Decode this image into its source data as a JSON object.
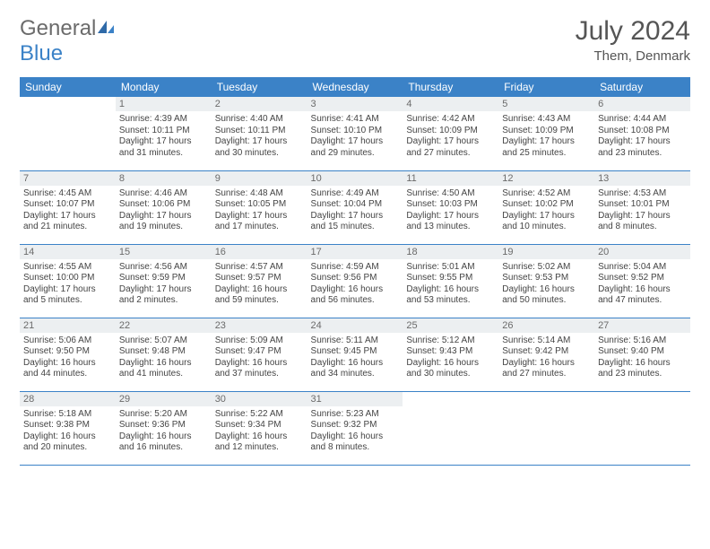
{
  "logo": {
    "general": "General",
    "blue": "Blue"
  },
  "title": "July 2024",
  "location": "Them, Denmark",
  "weekdays": [
    "Sunday",
    "Monday",
    "Tuesday",
    "Wednesday",
    "Thursday",
    "Friday",
    "Saturday"
  ],
  "colors": {
    "accent": "#3b82c7",
    "header_bg": "#3b82c7",
    "header_text": "#ffffff",
    "daynum_bg": "#eceff1",
    "text": "#444444",
    "border": "#3b82c7"
  },
  "weeks": [
    [
      null,
      {
        "n": "1",
        "sunrise": "4:39 AM",
        "sunset": "10:11 PM",
        "dl_h": "17",
        "dl_m": "31"
      },
      {
        "n": "2",
        "sunrise": "4:40 AM",
        "sunset": "10:11 PM",
        "dl_h": "17",
        "dl_m": "30"
      },
      {
        "n": "3",
        "sunrise": "4:41 AM",
        "sunset": "10:10 PM",
        "dl_h": "17",
        "dl_m": "29"
      },
      {
        "n": "4",
        "sunrise": "4:42 AM",
        "sunset": "10:09 PM",
        "dl_h": "17",
        "dl_m": "27"
      },
      {
        "n": "5",
        "sunrise": "4:43 AM",
        "sunset": "10:09 PM",
        "dl_h": "17",
        "dl_m": "25"
      },
      {
        "n": "6",
        "sunrise": "4:44 AM",
        "sunset": "10:08 PM",
        "dl_h": "17",
        "dl_m": "23"
      }
    ],
    [
      {
        "n": "7",
        "sunrise": "4:45 AM",
        "sunset": "10:07 PM",
        "dl_h": "17",
        "dl_m": "21"
      },
      {
        "n": "8",
        "sunrise": "4:46 AM",
        "sunset": "10:06 PM",
        "dl_h": "17",
        "dl_m": "19"
      },
      {
        "n": "9",
        "sunrise": "4:48 AM",
        "sunset": "10:05 PM",
        "dl_h": "17",
        "dl_m": "17"
      },
      {
        "n": "10",
        "sunrise": "4:49 AM",
        "sunset": "10:04 PM",
        "dl_h": "17",
        "dl_m": "15"
      },
      {
        "n": "11",
        "sunrise": "4:50 AM",
        "sunset": "10:03 PM",
        "dl_h": "17",
        "dl_m": "13"
      },
      {
        "n": "12",
        "sunrise": "4:52 AM",
        "sunset": "10:02 PM",
        "dl_h": "17",
        "dl_m": "10"
      },
      {
        "n": "13",
        "sunrise": "4:53 AM",
        "sunset": "10:01 PM",
        "dl_h": "17",
        "dl_m": "8"
      }
    ],
    [
      {
        "n": "14",
        "sunrise": "4:55 AM",
        "sunset": "10:00 PM",
        "dl_h": "17",
        "dl_m": "5"
      },
      {
        "n": "15",
        "sunrise": "4:56 AM",
        "sunset": "9:59 PM",
        "dl_h": "17",
        "dl_m": "2"
      },
      {
        "n": "16",
        "sunrise": "4:57 AM",
        "sunset": "9:57 PM",
        "dl_h": "16",
        "dl_m": "59"
      },
      {
        "n": "17",
        "sunrise": "4:59 AM",
        "sunset": "9:56 PM",
        "dl_h": "16",
        "dl_m": "56"
      },
      {
        "n": "18",
        "sunrise": "5:01 AM",
        "sunset": "9:55 PM",
        "dl_h": "16",
        "dl_m": "53"
      },
      {
        "n": "19",
        "sunrise": "5:02 AM",
        "sunset": "9:53 PM",
        "dl_h": "16",
        "dl_m": "50"
      },
      {
        "n": "20",
        "sunrise": "5:04 AM",
        "sunset": "9:52 PM",
        "dl_h": "16",
        "dl_m": "47"
      }
    ],
    [
      {
        "n": "21",
        "sunrise": "5:06 AM",
        "sunset": "9:50 PM",
        "dl_h": "16",
        "dl_m": "44"
      },
      {
        "n": "22",
        "sunrise": "5:07 AM",
        "sunset": "9:48 PM",
        "dl_h": "16",
        "dl_m": "41"
      },
      {
        "n": "23",
        "sunrise": "5:09 AM",
        "sunset": "9:47 PM",
        "dl_h": "16",
        "dl_m": "37"
      },
      {
        "n": "24",
        "sunrise": "5:11 AM",
        "sunset": "9:45 PM",
        "dl_h": "16",
        "dl_m": "34"
      },
      {
        "n": "25",
        "sunrise": "5:12 AM",
        "sunset": "9:43 PM",
        "dl_h": "16",
        "dl_m": "30"
      },
      {
        "n": "26",
        "sunrise": "5:14 AM",
        "sunset": "9:42 PM",
        "dl_h": "16",
        "dl_m": "27"
      },
      {
        "n": "27",
        "sunrise": "5:16 AM",
        "sunset": "9:40 PM",
        "dl_h": "16",
        "dl_m": "23"
      }
    ],
    [
      {
        "n": "28",
        "sunrise": "5:18 AM",
        "sunset": "9:38 PM",
        "dl_h": "16",
        "dl_m": "20"
      },
      {
        "n": "29",
        "sunrise": "5:20 AM",
        "sunset": "9:36 PM",
        "dl_h": "16",
        "dl_m": "16"
      },
      {
        "n": "30",
        "sunrise": "5:22 AM",
        "sunset": "9:34 PM",
        "dl_h": "16",
        "dl_m": "12"
      },
      {
        "n": "31",
        "sunrise": "5:23 AM",
        "sunset": "9:32 PM",
        "dl_h": "16",
        "dl_m": "8"
      },
      null,
      null,
      null
    ]
  ],
  "labels": {
    "sunrise": "Sunrise: ",
    "sunset": "Sunset: ",
    "daylight_pre": "Daylight: ",
    "hours": " hours",
    "and": "and ",
    "minutes": " minutes."
  }
}
